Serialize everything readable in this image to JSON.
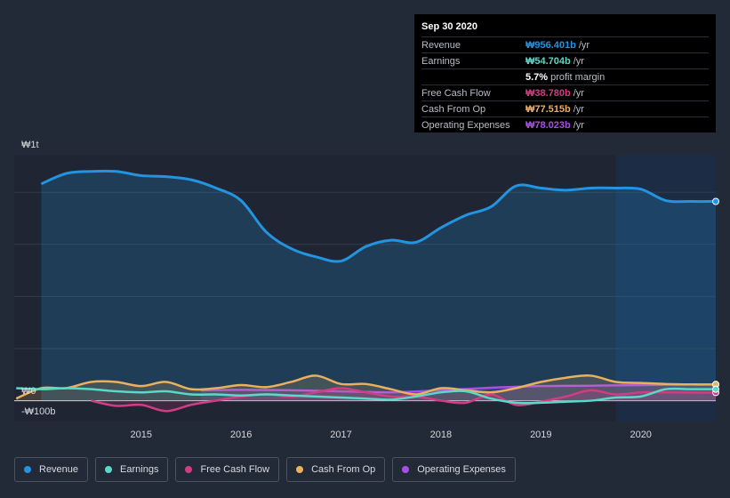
{
  "tooltip": {
    "date": "Sep 30 2020",
    "rows": [
      {
        "label": "Revenue",
        "value": "₩956.401b",
        "unit": "/yr",
        "color": "#2394df"
      },
      {
        "label": "Earnings",
        "value": "₩54.704b",
        "unit": "/yr",
        "color": "#59d9c9"
      },
      {
        "label": "",
        "value": "5.7%",
        "unit": "profit margin",
        "color": "#ffffff"
      },
      {
        "label": "Free Cash Flow",
        "value": "₩38.780b",
        "unit": "/yr",
        "color": "#d13d83"
      },
      {
        "label": "Cash From Op",
        "value": "₩77.515b",
        "unit": "/yr",
        "color": "#e9b15e"
      },
      {
        "label": "Operating Expenses",
        "value": "₩78.023b",
        "unit": "/yr",
        "color": "#a650e8"
      }
    ]
  },
  "chart_data": {
    "type": "area",
    "title": "",
    "xlabel": "",
    "ylabel": "",
    "currency": "KRW",
    "ylim": [
      -100,
      1180
    ],
    "y_tick_labels": [
      {
        "value": 1000,
        "label": "₩1t"
      },
      {
        "value": 0,
        "label": "₩0"
      },
      {
        "value": -100,
        "label": "-₩100b"
      }
    ],
    "x_tick_labels": [
      {
        "value": 2015,
        "label": "2015"
      },
      {
        "value": 2016,
        "label": "2016"
      },
      {
        "value": 2017,
        "label": "2017"
      },
      {
        "value": 2018,
        "label": "2018"
      },
      {
        "value": 2019,
        "label": "2019"
      },
      {
        "value": 2020,
        "label": "2020"
      }
    ],
    "xlim": [
      2013.73,
      2020.75
    ],
    "highlight_range": [
      2019.75,
      2020.75
    ],
    "series": [
      {
        "name": "Revenue",
        "color": "#2394df",
        "filled": true,
        "x": [
          2014.0,
          2014.25,
          2014.5,
          2014.75,
          2015.0,
          2015.25,
          2015.5,
          2015.75,
          2016.0,
          2016.25,
          2016.5,
          2016.75,
          2017.0,
          2017.25,
          2017.5,
          2017.75,
          2018.0,
          2018.25,
          2018.5,
          2018.75,
          2019.0,
          2019.25,
          2019.5,
          2019.75,
          2020.0,
          2020.25,
          2020.5,
          2020.75
        ],
        "values": [
          1040,
          1090,
          1100,
          1100,
          1080,
          1075,
          1060,
          1020,
          960,
          810,
          730,
          690,
          670,
          740,
          770,
          760,
          830,
          890,
          930,
          1030,
          1020,
          1010,
          1020,
          1020,
          1015,
          960,
          956,
          956
        ]
      },
      {
        "name": "Earnings",
        "color": "#59d9c9",
        "filled": false,
        "x": [
          2013.75,
          2014.0,
          2014.25,
          2014.5,
          2014.75,
          2015.0,
          2015.25,
          2015.5,
          2015.75,
          2016.0,
          2016.25,
          2016.5,
          2016.75,
          2017.0,
          2017.25,
          2017.5,
          2017.75,
          2018.0,
          2018.25,
          2018.5,
          2018.75,
          2019.0,
          2019.25,
          2019.5,
          2019.75,
          2020.0,
          2020.25,
          2020.5,
          2020.75
        ],
        "values": [
          60,
          55,
          60,
          55,
          45,
          40,
          45,
          30,
          30,
          25,
          30,
          25,
          20,
          15,
          10,
          5,
          20,
          40,
          45,
          10,
          -10,
          -10,
          -5,
          0,
          15,
          20,
          55,
          55,
          55
        ]
      },
      {
        "name": "Free Cash Flow",
        "color": "#d13d83",
        "filled": true,
        "x": [
          2014.5,
          2014.75,
          2015.0,
          2015.25,
          2015.5,
          2015.75,
          2016.0,
          2016.25,
          2016.5,
          2016.75,
          2017.0,
          2017.25,
          2017.5,
          2017.75,
          2018.0,
          2018.25,
          2018.5,
          2018.75,
          2019.0,
          2019.25,
          2019.5,
          2019.75,
          2020.0,
          2020.25,
          2020.5,
          2020.75
        ],
        "values": [
          0,
          -25,
          -20,
          -50,
          -20,
          0,
          20,
          30,
          20,
          40,
          60,
          40,
          20,
          20,
          0,
          -10,
          30,
          -20,
          -5,
          20,
          50,
          30,
          40,
          40,
          39,
          39
        ]
      },
      {
        "name": "Cash From Op",
        "color": "#e9b15e",
        "filled": true,
        "x": [
          2013.75,
          2014.0,
          2014.25,
          2014.5,
          2014.75,
          2015.0,
          2015.25,
          2015.5,
          2015.75,
          2016.0,
          2016.25,
          2016.5,
          2016.75,
          2017.0,
          2017.25,
          2017.5,
          2017.75,
          2018.0,
          2018.25,
          2018.5,
          2018.75,
          2019.0,
          2019.25,
          2019.5,
          2019.75,
          2020.0,
          2020.25,
          2020.5,
          2020.75
        ],
        "values": [
          10,
          60,
          60,
          90,
          90,
          70,
          90,
          55,
          60,
          75,
          65,
          90,
          120,
          80,
          80,
          55,
          30,
          60,
          50,
          40,
          60,
          90,
          110,
          120,
          90,
          85,
          80,
          78,
          78
        ]
      },
      {
        "name": "Operating Expenses",
        "color": "#a650e8",
        "filled": true,
        "x": [
          2015.6,
          2016.0,
          2016.5,
          2017.0,
          2017.5,
          2018.0,
          2018.5,
          2019.0,
          2019.5,
          2020.0,
          2020.5,
          2020.75
        ],
        "values": [
          50,
          52,
          50,
          45,
          40,
          50,
          62,
          70,
          72,
          75,
          78,
          78
        ]
      }
    ],
    "legend": [
      "Revenue",
      "Earnings",
      "Free Cash Flow",
      "Cash From Op",
      "Operating Expenses"
    ]
  },
  "legend_items": [
    {
      "label": "Revenue",
      "color": "#2394df"
    },
    {
      "label": "Earnings",
      "color": "#59d9c9"
    },
    {
      "label": "Free Cash Flow",
      "color": "#d13d83"
    },
    {
      "label": "Cash From Op",
      "color": "#e9b15e"
    },
    {
      "label": "Operating Expenses",
      "color": "#a650e8"
    }
  ]
}
